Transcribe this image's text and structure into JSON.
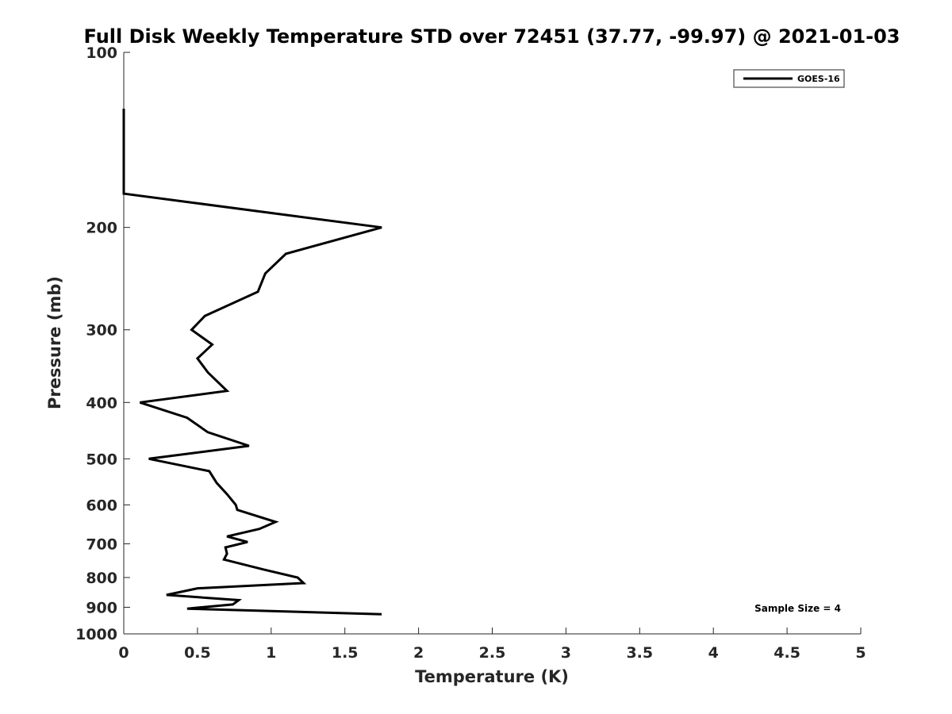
{
  "chart_data": {
    "type": "line",
    "title": "Full Disk Weekly Temperature STD over 72451 (37.77, -99.97) @ 2021-01-03",
    "xlabel": "Temperature (K)",
    "ylabel": "Pressure (mb)",
    "xlim": [
      0,
      5
    ],
    "ylim": [
      100,
      1000
    ],
    "yscale": "log",
    "yreversed": true,
    "grid": false,
    "legend_position": "top-right",
    "xticks": [
      "0",
      "0.5",
      "1",
      "1.5",
      "2",
      "2.5",
      "3",
      "3.5",
      "4",
      "4.5",
      "5"
    ],
    "yticks": [
      "100",
      "200",
      "300",
      "400",
      "500",
      "600",
      "700",
      "800",
      "900",
      "1000"
    ],
    "annotation": "Sample Size = 4",
    "series": [
      {
        "name": "GOES-16",
        "color": "#000000",
        "points": [
          {
            "x": 0.0,
            "y": 125
          },
          {
            "x": 0.0,
            "y": 175
          },
          {
            "x": 1.75,
            "y": 200
          },
          {
            "x": 1.1,
            "y": 222
          },
          {
            "x": 0.96,
            "y": 240
          },
          {
            "x": 0.91,
            "y": 258
          },
          {
            "x": 0.55,
            "y": 284
          },
          {
            "x": 0.46,
            "y": 300
          },
          {
            "x": 0.6,
            "y": 318
          },
          {
            "x": 0.5,
            "y": 336
          },
          {
            "x": 0.57,
            "y": 355
          },
          {
            "x": 0.7,
            "y": 382
          },
          {
            "x": 0.11,
            "y": 400
          },
          {
            "x": 0.43,
            "y": 425
          },
          {
            "x": 0.57,
            "y": 450
          },
          {
            "x": 0.85,
            "y": 475
          },
          {
            "x": 0.17,
            "y": 500
          },
          {
            "x": 0.58,
            "y": 525
          },
          {
            "x": 0.63,
            "y": 550
          },
          {
            "x": 0.7,
            "y": 575
          },
          {
            "x": 0.76,
            "y": 600
          },
          {
            "x": 0.77,
            "y": 612
          },
          {
            "x": 1.03,
            "y": 642
          },
          {
            "x": 0.92,
            "y": 660
          },
          {
            "x": 0.7,
            "y": 680
          },
          {
            "x": 0.84,
            "y": 695
          },
          {
            "x": 0.69,
            "y": 710
          },
          {
            "x": 0.7,
            "y": 728
          },
          {
            "x": 0.68,
            "y": 745
          },
          {
            "x": 0.95,
            "y": 775
          },
          {
            "x": 1.18,
            "y": 800
          },
          {
            "x": 1.22,
            "y": 818
          },
          {
            "x": 0.5,
            "y": 835
          },
          {
            "x": 0.29,
            "y": 857
          },
          {
            "x": 0.78,
            "y": 875
          },
          {
            "x": 0.74,
            "y": 890
          },
          {
            "x": 0.43,
            "y": 905
          },
          {
            "x": 1.75,
            "y": 925
          }
        ]
      }
    ]
  }
}
